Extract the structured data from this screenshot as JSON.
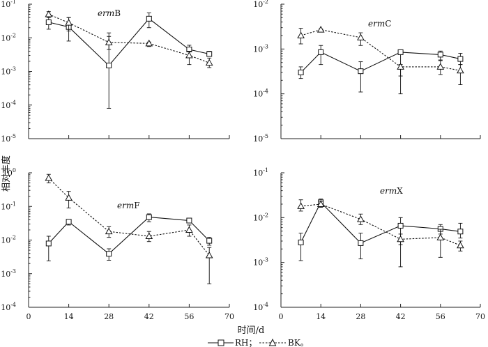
{
  "chart_data": [
    {
      "type": "line",
      "panel": "top-left",
      "gene_italic": "erm",
      "gene_suffix": "B",
      "x": [
        7,
        14,
        28,
        42,
        56,
        63
      ],
      "xlim": [
        0,
        70
      ],
      "ylim_exp": [
        -5,
        -1
      ],
      "yscale": "log",
      "series": [
        {
          "name": "RH",
          "marker": "square",
          "values": [
            0.029,
            0.021,
            0.0015,
            0.037,
            0.0045,
            0.0033
          ],
          "err_low": [
            0.018,
            0.008,
            8e-05,
            0.02,
            0.0028,
            0.0028
          ],
          "err_high": [
            0.05,
            0.04,
            0.014,
            0.055,
            0.006,
            0.004
          ]
        },
        {
          "name": "BK",
          "marker": "triangle",
          "values": [
            0.05,
            0.028,
            0.0073,
            0.0068,
            0.003,
            0.0018
          ],
          "err_low": [
            0.04,
            0.016,
            0.0045,
            0.0055,
            0.0016,
            0.0013
          ],
          "err_high": [
            0.06,
            0.04,
            0.011,
            0.0075,
            0.004,
            0.0025
          ]
        }
      ],
      "y_ticks": [
        {
          "exp": -1,
          "label": "10",
          "sup": "-1"
        },
        {
          "exp": -2,
          "label": "10",
          "sup": "-2"
        },
        {
          "exp": -3,
          "label": "10",
          "sup": "-3"
        },
        {
          "exp": -4,
          "label": "10",
          "sup": "-4"
        },
        {
          "exp": -5,
          "label": "10",
          "sup": "-5"
        }
      ]
    },
    {
      "type": "line",
      "panel": "top-right",
      "gene_italic": "erm",
      "gene_suffix": "C",
      "x": [
        7,
        14,
        28,
        42,
        56,
        63
      ],
      "xlim": [
        0,
        70
      ],
      "ylim_exp": [
        -5,
        -2
      ],
      "yscale": "log",
      "series": [
        {
          "name": "RH",
          "marker": "square",
          "values": [
            0.0003,
            0.00085,
            0.00032,
            0.00085,
            0.00075,
            0.0006
          ],
          "err_low": [
            0.00022,
            0.00045,
            0.00011,
            0.0001,
            0.00057,
            0.00045
          ],
          "err_high": [
            0.0004,
            0.0012,
            0.00052,
            0.0009,
            0.0009,
            0.0008
          ]
        },
        {
          "name": "BK",
          "marker": "triangle",
          "values": [
            0.002,
            0.0027,
            0.0018,
            0.0004,
            0.0004,
            0.00033
          ],
          "err_low": [
            0.0013,
            0.0026,
            0.0012,
            0.00025,
            0.00027,
            0.00016
          ],
          "err_high": [
            0.0029,
            0.0028,
            0.0023,
            0.00045,
            0.00055,
            0.00045
          ]
        }
      ],
      "y_ticks": [
        {
          "exp": -2,
          "label": "10",
          "sup": "-2"
        },
        {
          "exp": -3,
          "label": "10",
          "sup": "-3"
        },
        {
          "exp": -4,
          "label": "10",
          "sup": "-4"
        },
        {
          "exp": -5,
          "label": "10",
          "sup": "-5"
        }
      ]
    },
    {
      "type": "line",
      "panel": "bottom-left",
      "gene_italic": "erm",
      "gene_suffix": "F",
      "x": [
        7,
        14,
        28,
        42,
        56,
        63
      ],
      "xlim": [
        0,
        70
      ],
      "ylim_exp": [
        -4,
        0
      ],
      "yscale": "log",
      "series": [
        {
          "name": "RH",
          "marker": "square",
          "values": [
            0.0079,
            0.035,
            0.0039,
            0.048,
            0.038,
            0.0095
          ],
          "err_low": [
            0.0024,
            0.028,
            0.0025,
            0.035,
            0.035,
            0.007
          ],
          "err_high": [
            0.013,
            0.04,
            0.0055,
            0.06,
            0.04,
            0.012
          ]
        },
        {
          "name": "BK",
          "marker": "triangle",
          "values": [
            0.7,
            0.18,
            0.018,
            0.013,
            0.02,
            0.0035
          ],
          "err_low": [
            0.5,
            0.09,
            0.012,
            0.009,
            0.013,
            0.0005
          ],
          "err_high": [
            0.9,
            0.28,
            0.025,
            0.018,
            0.028,
            0.006
          ]
        }
      ],
      "y_ticks": [
        {
          "exp": 0,
          "label": "10",
          "sup": "0"
        },
        {
          "exp": -1,
          "label": "10",
          "sup": "-1"
        },
        {
          "exp": -2,
          "label": "10",
          "sup": "-2"
        },
        {
          "exp": -3,
          "label": "10",
          "sup": "-3"
        },
        {
          "exp": -4,
          "label": "10",
          "sup": "-4"
        }
      ]
    },
    {
      "type": "line",
      "panel": "bottom-right",
      "gene_italic": "erm",
      "gene_suffix": "X",
      "x": [
        7,
        14,
        28,
        42,
        56,
        63
      ],
      "xlim": [
        0,
        70
      ],
      "ylim_exp": [
        -4,
        -1
      ],
      "yscale": "log",
      "series": [
        {
          "name": "RH",
          "marker": "square",
          "values": [
            0.0028,
            0.022,
            0.0027,
            0.0066,
            0.0056,
            0.0049
          ],
          "err_low": [
            0.0011,
            0.018,
            0.0012,
            0.0008,
            0.0043,
            0.0035
          ],
          "err_high": [
            0.0045,
            0.026,
            0.0045,
            0.01,
            0.007,
            0.0075
          ]
        },
        {
          "name": "BK",
          "marker": "triangle",
          "values": [
            0.018,
            0.02,
            0.0092,
            0.0033,
            0.0036,
            0.0024
          ],
          "err_low": [
            0.014,
            0.017,
            0.007,
            0.0025,
            0.0013,
            0.0018
          ],
          "err_high": [
            0.025,
            0.023,
            0.012,
            0.0043,
            0.0055,
            0.003
          ]
        }
      ],
      "y_ticks": [
        {
          "exp": -1,
          "label": "10",
          "sup": "-1"
        },
        {
          "exp": -2,
          "label": "10",
          "sup": "-2"
        },
        {
          "exp": -3,
          "label": "10",
          "sup": "-3"
        },
        {
          "exp": -4,
          "label": "10",
          "sup": "-4"
        }
      ]
    }
  ],
  "x_tick_labels": [
    "0",
    "14",
    "28",
    "42",
    "56",
    "70"
  ],
  "ylabel": "相对丰度",
  "xlabel": "时间/d",
  "legend": {
    "rh_label": "RH；",
    "bk_label": "BK。"
  }
}
